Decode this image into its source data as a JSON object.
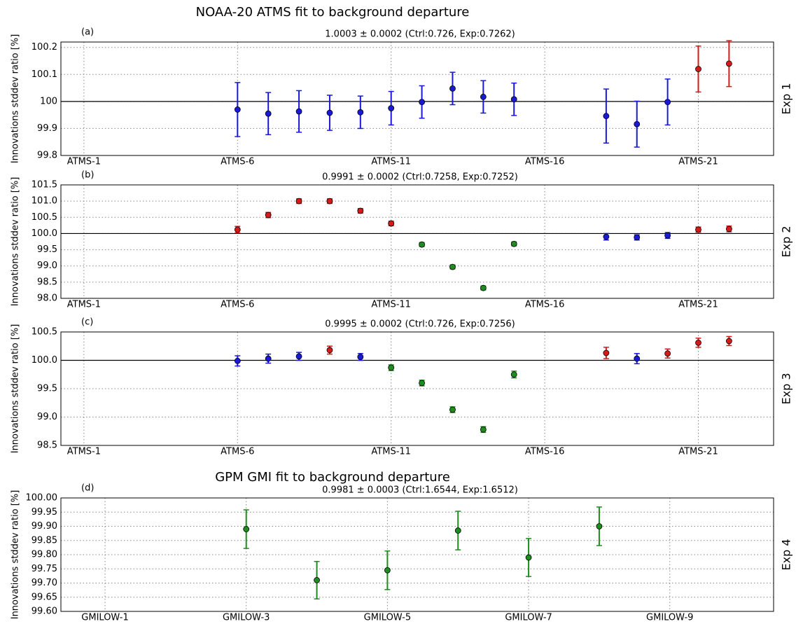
{
  "chart_data": [
    {
      "type": "errorbar",
      "title": "NOAA-20 ATMS fit to background departure",
      "panel_label": "(a)",
      "subtitle": "1.0003 ± 0.0002  (Ctrl:0.726, Exp:0.7262)",
      "subtitle_color": "#e8262b",
      "ylabel": "Innovations stddev ratio [%]",
      "side_label": "Exp 1",
      "grid": true,
      "hline": 100,
      "xlim": [
        0.25,
        23.45
      ],
      "xticks": [
        {
          "value": 1,
          "label": "ATMS-1"
        },
        {
          "value": 6,
          "label": "ATMS-6"
        },
        {
          "value": 11,
          "label": "ATMS-11"
        },
        {
          "value": 16,
          "label": "ATMS-16"
        },
        {
          "value": 21,
          "label": "ATMS-21"
        }
      ],
      "ylim": [
        99.8,
        100.22
      ],
      "yticks": [
        99.8,
        99.9,
        100,
        100.1,
        100.2
      ],
      "series": [
        {
          "color": "#1a1ad6",
          "x": [
            6,
            7,
            8,
            9,
            10,
            11,
            12,
            13,
            14,
            15,
            18,
            19,
            20
          ],
          "values": [
            99.97,
            99.955,
            99.963,
            99.958,
            99.96,
            99.975,
            99.998,
            100.048,
            100.017,
            100.008,
            99.946,
            99.916,
            99.998
          ],
          "errors": [
            0.1,
            0.078,
            0.077,
            0.065,
            0.06,
            0.062,
            0.06,
            0.06,
            0.06,
            0.06,
            0.1,
            0.085,
            0.085
          ]
        },
        {
          "color": "#d61a1a",
          "x": [
            21,
            22
          ],
          "values": [
            100.12,
            100.14
          ],
          "errors": [
            0.085,
            0.085
          ]
        }
      ]
    },
    {
      "type": "errorbar",
      "panel_label": "(b)",
      "subtitle": "0.9991 ± 0.0002  (Ctrl:0.7258, Exp:0.7252)",
      "subtitle_color": "#1e8c1e",
      "ylabel": "Innovations stddev ratio [%]",
      "side_label": "Exp 2",
      "grid": true,
      "hline": 100,
      "xlim": [
        0.25,
        23.45
      ],
      "xticks": [
        {
          "value": 1,
          "label": "ATMS-1"
        },
        {
          "value": 6,
          "label": "ATMS-6"
        },
        {
          "value": 11,
          "label": "ATMS-11"
        },
        {
          "value": 16,
          "label": "ATMS-16"
        },
        {
          "value": 21,
          "label": "ATMS-21"
        }
      ],
      "ylim": [
        98,
        101.5
      ],
      "yticks": [
        {
          "value": 98,
          "label": "98.0"
        },
        98.5,
        {
          "value": 99,
          "label": "99.0"
        },
        99.5,
        {
          "value": 100,
          "label": "100.0"
        },
        100.5,
        {
          "value": 101,
          "label": "101.0"
        },
        101.5
      ],
      "series": [
        {
          "color": "#d61a1a",
          "x": [
            6,
            7,
            8,
            9,
            10,
            11,
            21,
            22
          ],
          "values": [
            100.12,
            100.57,
            101.0,
            101.0,
            100.7,
            100.31,
            100.12,
            100.14
          ],
          "errors": [
            0.1,
            0.08,
            0.07,
            0.07,
            0.07,
            0.07,
            0.08,
            0.09
          ]
        },
        {
          "color": "#1e8c1e",
          "x": [
            12,
            13,
            14,
            15
          ],
          "values": [
            99.66,
            98.97,
            98.32,
            99.68
          ],
          "errors": [
            0.06,
            0.06,
            0.06,
            0.06
          ]
        },
        {
          "color": "#1a1ad6",
          "x": [
            18,
            19,
            20
          ],
          "values": [
            99.9,
            99.88,
            99.94
          ],
          "errors": [
            0.1,
            0.08,
            0.09
          ]
        }
      ]
    },
    {
      "type": "errorbar",
      "panel_label": "(c)",
      "subtitle": "0.9995 ± 0.0002  (Ctrl:0.726, Exp:0.7256)",
      "subtitle_color": "#1e8c1e",
      "ylabel": "Innovations stddev ratio [%]",
      "side_label": "Exp 3",
      "grid": true,
      "hline": 100,
      "xlim": [
        0.25,
        23.45
      ],
      "xticks": [
        {
          "value": 1,
          "label": "ATMS-1"
        },
        {
          "value": 6,
          "label": "ATMS-6"
        },
        {
          "value": 11,
          "label": "ATMS-11"
        },
        {
          "value": 16,
          "label": "ATMS-16"
        },
        {
          "value": 21,
          "label": "ATMS-21"
        }
      ],
      "ylim": [
        98.5,
        100.5
      ],
      "yticks": [
        98.5,
        {
          "value": 99,
          "label": "99.0"
        },
        99.5,
        {
          "value": 100,
          "label": "100.0"
        },
        100.5
      ],
      "series": [
        {
          "color": "#1a1ad6",
          "x": [
            6,
            7,
            8,
            10,
            19
          ],
          "values": [
            99.99,
            100.03,
            100.07,
            100.06,
            100.03
          ],
          "errors": [
            0.09,
            0.08,
            0.07,
            0.06,
            0.09
          ]
        },
        {
          "color": "#d61a1a",
          "x": [
            9,
            18,
            20,
            21,
            22
          ],
          "values": [
            100.18,
            100.13,
            100.12,
            100.31,
            100.34
          ],
          "errors": [
            0.07,
            0.1,
            0.08,
            0.08,
            0.08
          ]
        },
        {
          "color": "#1e8c1e",
          "x": [
            11,
            12,
            13,
            14,
            15
          ],
          "values": [
            99.87,
            99.6,
            99.13,
            98.78,
            99.75
          ],
          "errors": [
            0.05,
            0.05,
            0.05,
            0.05,
            0.06
          ]
        }
      ]
    },
    {
      "type": "errorbar",
      "title": "GPM GMI fit to background departure",
      "panel_label": "(d)",
      "subtitle": "0.9981 ± 0.0003  (Ctrl:1.6544, Exp:1.6512)",
      "subtitle_color": "#1e8c1e",
      "ylabel": "Innovations stddev ratio [%]",
      "side_label": "Exp 4",
      "grid": true,
      "xlim": [
        0.375,
        10.47
      ],
      "xticks": [
        {
          "value": 1,
          "label": "GMILOW-1"
        },
        {
          "value": 3,
          "label": "GMILOW-3"
        },
        {
          "value": 5,
          "label": "GMILOW-5"
        },
        {
          "value": 7,
          "label": "GMILOW-7"
        },
        {
          "value": 9,
          "label": "GMILOW-9"
        }
      ],
      "ylim": [
        99.6,
        100
      ],
      "yticks": [
        {
          "value": 99.6,
          "label": "99.60"
        },
        99.65,
        {
          "value": 99.7,
          "label": "99.70"
        },
        99.75,
        {
          "value": 99.8,
          "label": "99.80"
        },
        99.85,
        {
          "value": 99.9,
          "label": "99.90"
        },
        99.95,
        {
          "value": 100,
          "label": "100.00"
        }
      ],
      "series": [
        {
          "color": "#1e8c1e",
          "x": [
            3,
            4,
            5,
            6,
            7,
            8
          ],
          "values": [
            99.89,
            99.71,
            99.745,
            99.885,
            99.79,
            99.9
          ],
          "errors": [
            0.068,
            0.066,
            0.068,
            0.068,
            0.067,
            0.068
          ]
        }
      ]
    }
  ]
}
